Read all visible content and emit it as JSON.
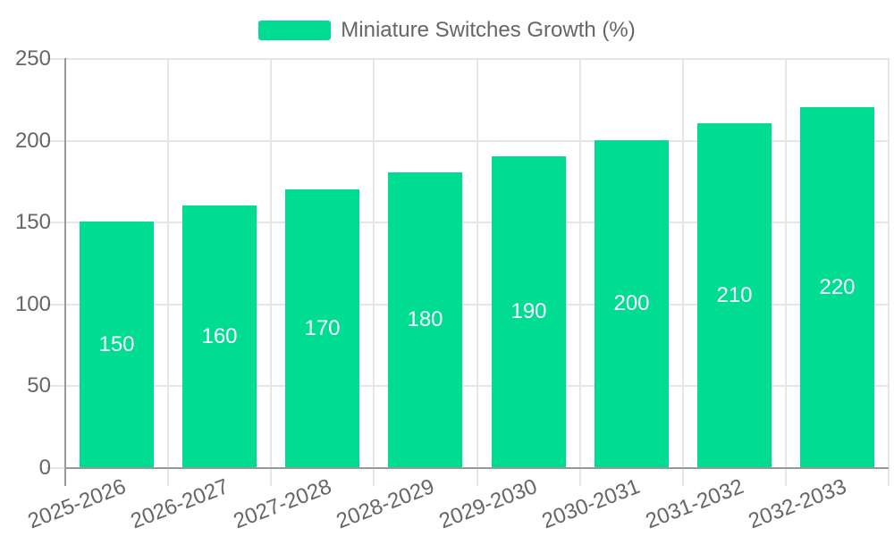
{
  "legend": {
    "label": "Miniature Switches Growth (%)"
  },
  "colors": {
    "bar": "#00DC92",
    "grid": "#e6e6e6",
    "axis": "#999999",
    "label": "#666666",
    "value_label": "#ffffff",
    "background": "#ffffff"
  },
  "chart_data": {
    "type": "bar",
    "title": "Miniature Switches Growth (%)",
    "categories": [
      "2025-2026",
      "2026-2027",
      "2027-2028",
      "2028-2029",
      "2029-2030",
      "2030-2031",
      "2031-2032",
      "2032-2033"
    ],
    "values": [
      150,
      160,
      170,
      180,
      190,
      200,
      210,
      220
    ],
    "value_labels": [
      "150",
      "160",
      "170",
      "180",
      "190",
      "200",
      "210",
      "220"
    ],
    "xlabel": "",
    "ylabel": "",
    "ylim": [
      0,
      250
    ],
    "yticks": [
      0,
      50,
      100,
      150,
      200,
      250
    ],
    "grid": "on",
    "legend_position": "top-center",
    "value_label_position": "center-of-bar"
  }
}
